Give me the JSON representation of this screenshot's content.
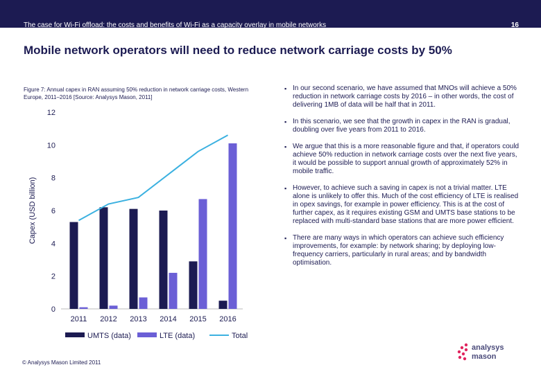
{
  "header": {
    "title": "The case for Wi-Fi offload: the costs and benefits of Wi-Fi as a capacity overlay in mobile networks",
    "page_number": "16"
  },
  "headline": "Mobile network operators will need to reduce network carriage costs by 50%",
  "figure_caption": "Figure 7: Annual capex in RAN assuming 50% reduction in network carriage costs, Western Europe, 2011–2016 [Source: Analysys Mason, 2011]",
  "chart_data": {
    "type": "bar",
    "categories": [
      "2011",
      "2012",
      "2013",
      "2014",
      "2015",
      "2016"
    ],
    "series": [
      {
        "name": "UMTS (data)",
        "kind": "bar",
        "color": "#1c1b52",
        "values": [
          5.3,
          6.2,
          6.1,
          6.0,
          2.9,
          0.5
        ]
      },
      {
        "name": "LTE (data)",
        "kind": "bar",
        "color": "#6b5fd6",
        "values": [
          0.1,
          0.2,
          0.7,
          2.2,
          6.7,
          10.1
        ]
      },
      {
        "name": "Total",
        "kind": "line",
        "color": "#3bb1e0",
        "values": [
          5.4,
          6.4,
          6.8,
          8.2,
          9.6,
          10.6
        ]
      }
    ],
    "ylabel": "Capex (USD billion)",
    "xlabel": "",
    "ylim": [
      0,
      12
    ],
    "yticks": [
      "0",
      "2",
      "4",
      "6",
      "8",
      "10",
      "12"
    ],
    "legend": [
      "UMTS (data)",
      "LTE (data)",
      "Total"
    ],
    "legend_position": "bottom"
  },
  "bullets": [
    "In our second scenario, we have assumed that MNOs will achieve a 50% reduction in network carriage costs by 2016 – in other words, the cost of delivering 1MB of data will be half that in 2011.",
    "In this scenario, we see that the growth in capex in the RAN is gradual, doubling over five years from 2011 to 2016.",
    "We argue that this is a more reasonable figure and that, if operators could achieve 50% reduction in network carriage costs over the next five years, it would be possible to support annual growth of approximately 52% in mobile traffic.",
    "However, to achieve such a saving in capex is not a trivial matter. LTE alone is unlikely to offer this. Much of the cost efficiency of LTE is realised in opex savings, for example in power efficiency. This is at the cost of further capex, as it requires existing GSM and UMTS base stations to be replaced with multi-standard base stations that are more power efficient.",
    "There are many ways in which operators can achieve such efficiency improvements, for example: by network sharing; by deploying low-frequency carriers, particularly in rural areas; and by bandwidth optimisation."
  ],
  "bullet_marker": "▪",
  "footer": {
    "copyright": "© Analysys Mason Limited 2011",
    "logo_line1": "analysys",
    "logo_line2": "mason"
  },
  "colors": {
    "header_bg": "#1c1b52",
    "text": "#1c1b52",
    "umts": "#1c1b52",
    "lte": "#6b5fd6",
    "total": "#3bb1e0",
    "logo_dots": "#e0245e"
  }
}
